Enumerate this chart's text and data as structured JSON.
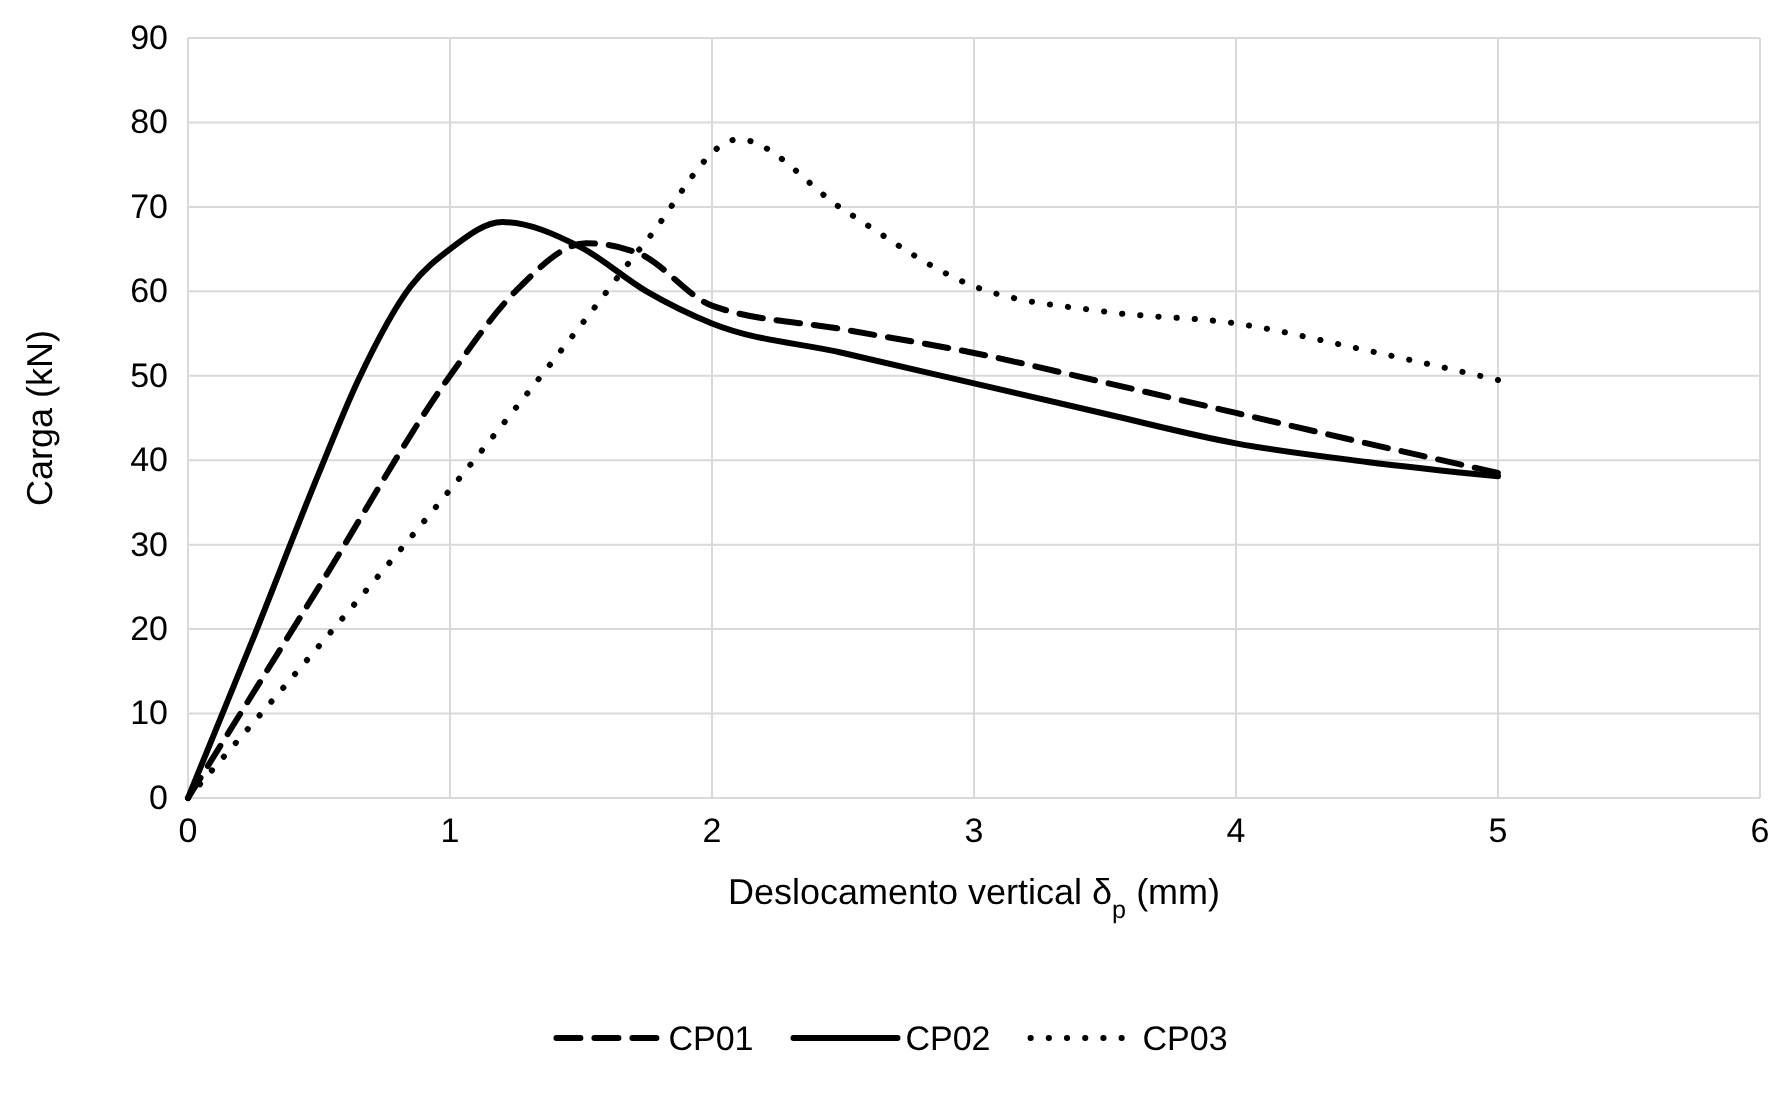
{
  "chart_data": {
    "type": "line",
    "xlabel": "Deslocamento vertical δ$_{p}$ (mm)",
    "ylabel": "Carga (kN)",
    "xlim": [
      0,
      6
    ],
    "xticks": [
      0,
      1,
      2,
      3,
      4,
      5,
      6
    ],
    "ylim": [
      0,
      90
    ],
    "yticks": [
      0,
      10,
      20,
      30,
      40,
      50,
      60,
      70,
      80,
      90
    ],
    "grid": true,
    "legend": "bottom",
    "marker": "none",
    "series": [
      {
        "name": "CP01",
        "color": "#000000",
        "line_style": "dashed",
        "x": [
          0,
          0.5,
          1,
          1.25,
          1.52,
          1.72,
          2,
          2.5,
          3,
          3.5,
          4,
          4.5,
          5
        ],
        "values": [
          0,
          25,
          50,
          60,
          65.7,
          64.5,
          58.3,
          55.5,
          52.7,
          49.2,
          45.6,
          42,
          38.5
        ]
      },
      {
        "name": "CP02",
        "color": "#000000",
        "line_style": "solid",
        "x": [
          0,
          0.25,
          0.5,
          0.65,
          0.85,
          1,
          1.2,
          1.5,
          1.75,
          2,
          2.5,
          3,
          3.5,
          4,
          4.5,
          5
        ],
        "values": [
          0,
          19,
          38.5,
          49.5,
          60.6,
          65,
          68.2,
          65.2,
          60,
          56.2,
          52.7,
          49.1,
          45.5,
          42,
          39.8,
          38.1
        ]
      },
      {
        "name": "CP03",
        "color": "#000000",
        "line_style": "dotted",
        "x": [
          0,
          0.5,
          1,
          1.5,
          1.75,
          2.1,
          2.5,
          3,
          3.5,
          4,
          4.5,
          5
        ],
        "values": [
          0,
          18,
          36.5,
          56,
          66,
          78,
          69.7,
          60.6,
          57.6,
          56.2,
          53,
          49.5
        ]
      }
    ]
  }
}
